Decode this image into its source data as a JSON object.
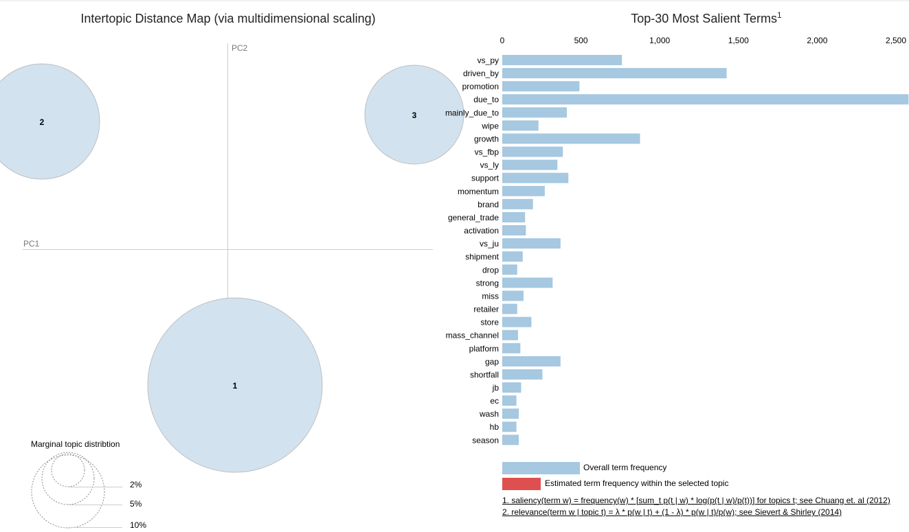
{
  "left_panel": {
    "title": "Intertopic Distance Map (via multidimensional scaling)",
    "x_axis_label": "PC1",
    "y_axis_label": "PC2"
  },
  "right_panel": {
    "title": "Top-30 Most Salient Terms",
    "title_superscript": "1"
  },
  "legend": {
    "marginal_title": "Marginal topic distribtion",
    "marginal_sizes": [
      "2%",
      "5%",
      "10%"
    ],
    "overall_label": "Overall term frequency",
    "topic_label": "Estimated term frequency within the selected topic"
  },
  "footnotes": {
    "note1": "1. saliency(term w) = frequency(w) * [sum_t p(t | w) * log(p(t | w)/p(t))] for topics t; see Chuang et. al (2012)",
    "note2": "2. relevance(term w | topic t) = λ * p(w | t) + (1 - λ) * p(w | t)/p(w); see Sievert & Shirley (2014)"
  },
  "colors": {
    "overall_bar": "#a6c8e1",
    "topic_bar": "#de5050",
    "topic_circle": "#d2e2ee",
    "circle_stroke": "#bfbfbf"
  },
  "chart_data": [
    {
      "type": "scatter",
      "title": "Intertopic Distance Map (via multidimensional scaling)",
      "xlabel": "PC1",
      "ylabel": "PC2",
      "topics": [
        {
          "label": "1"
        },
        {
          "label": "2"
        },
        {
          "label": "3"
        }
      ]
    },
    {
      "type": "bar",
      "orientation": "horizontal",
      "title": "Top-30 Most Salient Terms",
      "xlim": [
        0,
        2500
      ],
      "ticks": [
        0,
        500,
        1000,
        1500,
        2000,
        2500
      ],
      "tick_labels": [
        "0",
        "500",
        "1,000",
        "1,500",
        "2,000",
        "2,500"
      ],
      "categories": [
        "vs_py",
        "driven_by",
        "promotion",
        "due_to",
        "mainly_due_to",
        "wipe",
        "growth",
        "vs_fbp",
        "vs_ly",
        "support",
        "momentum",
        "brand",
        "general_trade",
        "activation",
        "vs_ju",
        "shipment",
        "drop",
        "strong",
        "miss",
        "retailer",
        "store",
        "mass_channel",
        "platform",
        "gap",
        "shortfall",
        "jb",
        "ec",
        "wash",
        "hb",
        "season"
      ],
      "series": [
        {
          "name": "Overall term frequency",
          "values": [
            760,
            1425,
            490,
            2580,
            410,
            230,
            875,
            385,
            350,
            420,
            270,
            195,
            145,
            150,
            370,
            130,
            95,
            320,
            135,
            95,
            185,
            100,
            115,
            370,
            255,
            120,
            90,
            105,
            90,
            105
          ]
        }
      ]
    }
  ]
}
